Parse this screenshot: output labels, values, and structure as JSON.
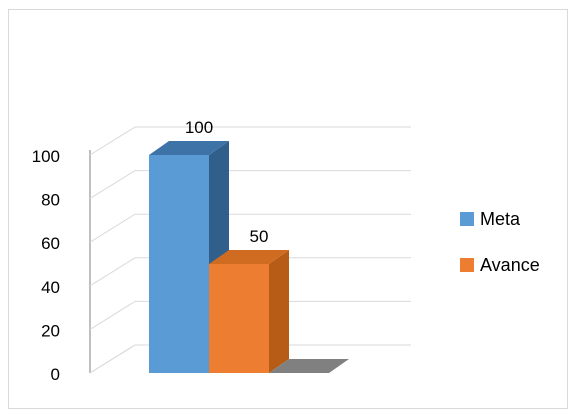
{
  "chart_data": {
    "type": "bar",
    "title": "",
    "xlabel": "",
    "ylabel": "",
    "categories": [
      ""
    ],
    "ylim": [
      0,
      100
    ],
    "yticks": [
      0,
      20,
      40,
      60,
      80,
      100
    ],
    "grid": true,
    "legend_position": "right",
    "series": [
      {
        "name": "Meta",
        "values": [
          100
        ],
        "data_labels": [
          "100"
        ],
        "color": "#5b9bd5"
      },
      {
        "name": "Avance",
        "values": [
          50
        ],
        "data_labels": [
          "50"
        ],
        "color": "#ed7d31"
      }
    ]
  },
  "colors": {
    "gridline": "#d9d9d9",
    "wall": "#bfbfbf",
    "floor_shadow": "#808080",
    "meta_side": "#2f5f8a",
    "meta_top": "#3d73a6",
    "avance_side": "#b75c17",
    "avance_top": "#d06b22"
  }
}
